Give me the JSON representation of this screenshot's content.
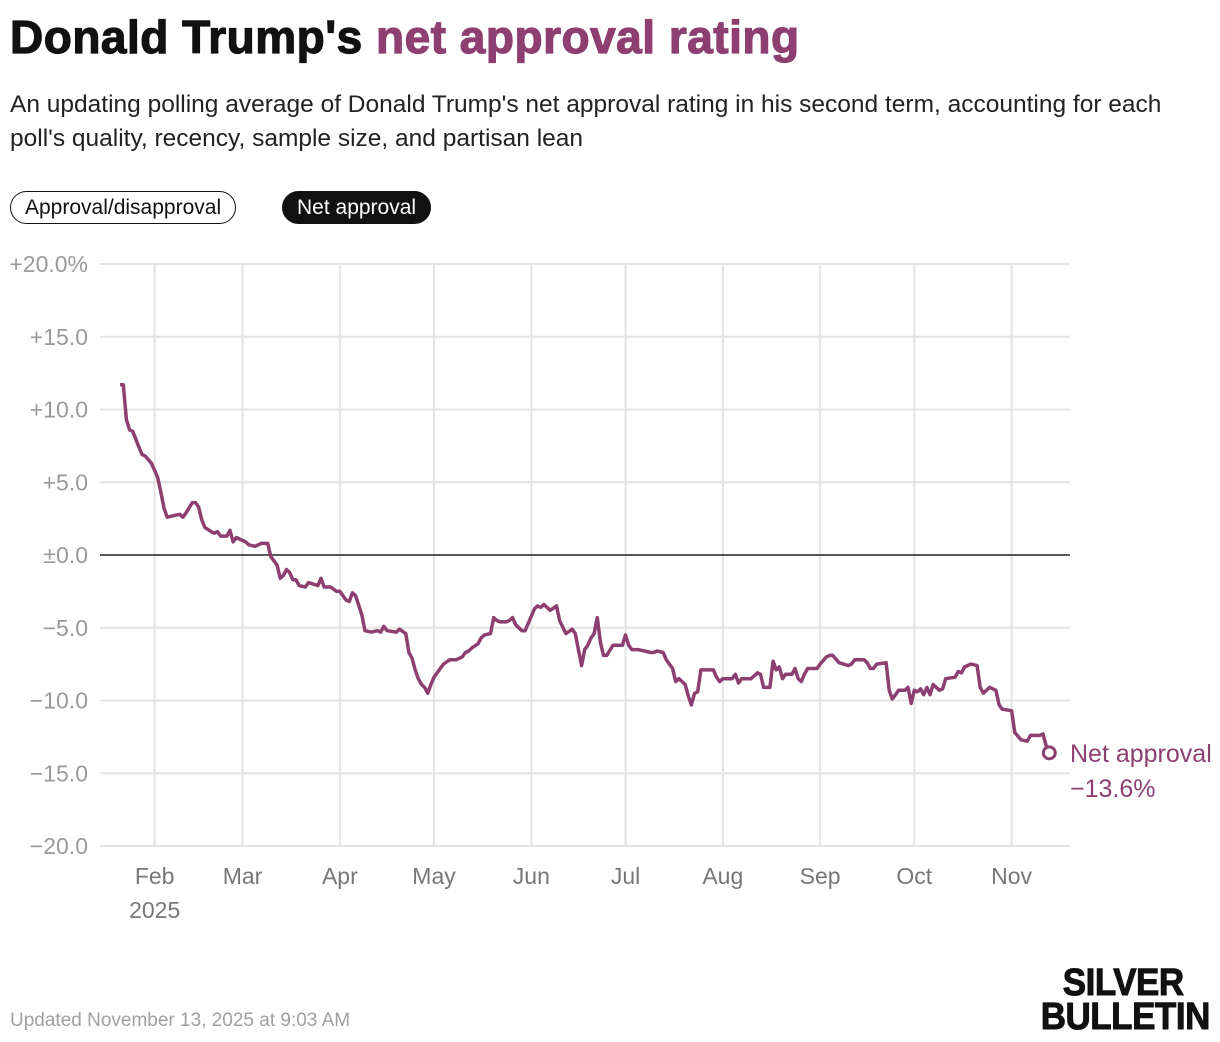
{
  "header": {
    "title_prefix": "Donald Trump's ",
    "title_highlight": "net approval rating",
    "subtitle": "An updating polling average of Donald Trump's net approval rating in his second term, accounting for each poll's quality, recency, sample size, and partisan lean"
  },
  "toggles": {
    "approval_disapproval": "Approval/disapproval",
    "net_approval": "Net approval",
    "active": "net_approval"
  },
  "footer": {
    "updated": "Updated November 13, 2025 at 9:03 AM",
    "logo_line1": "SILVER",
    "logo_line2": "BULLETIN"
  },
  "colors": {
    "accent": "#8e3f72",
    "grid": "#e4e4e4",
    "zero": "#222222",
    "tick": "#9a9a9a"
  },
  "chart_data": {
    "type": "line",
    "title": "Donald Trump's net approval rating",
    "xlabel": "",
    "ylabel": "",
    "x_unit": "days since Jan 20, 2025",
    "ylim": [
      -20,
      20
    ],
    "xlim": [
      0,
      306
    ],
    "grid": true,
    "y_ticks": [
      {
        "value": 20,
        "label": "+20.0%"
      },
      {
        "value": 15,
        "label": "+15.0"
      },
      {
        "value": 10,
        "label": "+10.0"
      },
      {
        "value": 5,
        "label": "+5.0"
      },
      {
        "value": 0,
        "label": "±0.0"
      },
      {
        "value": -5,
        "label": "−5.0"
      },
      {
        "value": -10,
        "label": "−10.0"
      },
      {
        "value": -15,
        "label": "−15.0"
      },
      {
        "value": -20,
        "label": "−20.0"
      }
    ],
    "x_ticks": [
      {
        "day": 12,
        "label": "Feb",
        "sublabel": "2025"
      },
      {
        "day": 40,
        "label": "Mar"
      },
      {
        "day": 71,
        "label": "Apr"
      },
      {
        "day": 101,
        "label": "May"
      },
      {
        "day": 132,
        "label": "Jun"
      },
      {
        "day": 162,
        "label": "Jul"
      },
      {
        "day": 193,
        "label": "Aug"
      },
      {
        "day": 224,
        "label": "Sep"
      },
      {
        "day": 254,
        "label": "Oct"
      },
      {
        "day": 285,
        "label": "Nov"
      }
    ],
    "series": [
      {
        "name": "Net approval",
        "end_label": "Net approval",
        "end_value_label": "−13.6%",
        "x": [
          1,
          2,
          3,
          4,
          5,
          7,
          8,
          9,
          11,
          12,
          13,
          14,
          15,
          16,
          18,
          20,
          21,
          22,
          24,
          25,
          26,
          27,
          28,
          30,
          31,
          32,
          33,
          35,
          36,
          37,
          38,
          39,
          41,
          42,
          44,
          46,
          48,
          49,
          51,
          52,
          53,
          54,
          55,
          56,
          57,
          58,
          60,
          61,
          64,
          65,
          66,
          68,
          70,
          71,
          73,
          74,
          75,
          76,
          78,
          79,
          81,
          83,
          84,
          85,
          86,
          89,
          90,
          92,
          93,
          94,
          95,
          96,
          97,
          98,
          99,
          100,
          101,
          103,
          104,
          106,
          108,
          110,
          111,
          112,
          113,
          115,
          116,
          117,
          119,
          120,
          121,
          122,
          124,
          125,
          126,
          127,
          129,
          130,
          131,
          133,
          134,
          135,
          136,
          138,
          140,
          141,
          143,
          145,
          146,
          147,
          148,
          149,
          150,
          151,
          152,
          153,
          154,
          155,
          156,
          158,
          159,
          161,
          162,
          163,
          164,
          166,
          168,
          170,
          171,
          172,
          174,
          175,
          177,
          178,
          179,
          181,
          182,
          183,
          184,
          185,
          186,
          188,
          190,
          191,
          192,
          193,
          196,
          197,
          198,
          199,
          202,
          204,
          205,
          206,
          208,
          209,
          210,
          211,
          212,
          213,
          215,
          216,
          217,
          218,
          219,
          220,
          223,
          224,
          226,
          227,
          228,
          230,
          233,
          234,
          235,
          238,
          239,
          240,
          241,
          242,
          245,
          246,
          247,
          248,
          249,
          251,
          252,
          253,
          254,
          255,
          256,
          257,
          258,
          259,
          260,
          262,
          263,
          264,
          267,
          268,
          269,
          270,
          272,
          274,
          275,
          276,
          278,
          280,
          281,
          282,
          285,
          286,
          288,
          290,
          291,
          294,
          295,
          296,
          297
        ],
        "values": [
          11.7,
          11.7,
          9.3,
          8.6,
          8.5,
          7.4,
          6.9,
          6.8,
          6.3,
          5.8,
          5.3,
          4.3,
          3.2,
          2.6,
          2.7,
          2.8,
          2.6,
          2.9,
          3.6,
          3.6,
          3.3,
          2.4,
          1.9,
          1.6,
          1.5,
          1.6,
          1.3,
          1.3,
          1.7,
          0.9,
          1.2,
          1.1,
          0.9,
          0.7,
          0.6,
          0.8,
          0.8,
          -0.1,
          -0.7,
          -1.6,
          -1.4,
          -1.0,
          -1.2,
          -1.7,
          -1.7,
          -2.1,
          -2.2,
          -1.9,
          -2.1,
          -1.6,
          -2.2,
          -2.2,
          -2.5,
          -2.5,
          -3.1,
          -3.2,
          -2.6,
          -2.8,
          -4.1,
          -5.2,
          -5.3,
          -5.2,
          -5.3,
          -4.9,
          -5.2,
          -5.3,
          -5.1,
          -5.4,
          -6.7,
          -7.1,
          -7.9,
          -8.5,
          -8.9,
          -9.1,
          -9.5,
          -8.9,
          -8.4,
          -7.8,
          -7.5,
          -7.2,
          -7.2,
          -7.0,
          -6.7,
          -6.6,
          -6.4,
          -6.1,
          -5.7,
          -5.5,
          -5.4,
          -4.3,
          -4.5,
          -4.6,
          -4.6,
          -4.5,
          -4.3,
          -4.8,
          -5.2,
          -5.2,
          -4.7,
          -3.7,
          -3.5,
          -3.6,
          -3.4,
          -3.8,
          -3.5,
          -4.5,
          -5.4,
          -5.1,
          -5.4,
          -6.5,
          -7.6,
          -6.5,
          -6.2,
          -5.7,
          -5.4,
          -4.3,
          -6.0,
          -6.9,
          -6.9,
          -6.2,
          -6.2,
          -6.2,
          -5.5,
          -6.2,
          -6.5,
          -6.5,
          -6.6,
          -6.7,
          -6.7,
          -6.6,
          -6.7,
          -7.2,
          -7.8,
          -8.7,
          -8.5,
          -8.9,
          -9.7,
          -10.3,
          -9.5,
          -9.4,
          -7.9,
          -7.9,
          -7.9,
          -8.4,
          -8.7,
          -8.5,
          -8.5,
          -8.2,
          -8.8,
          -8.5,
          -8.5,
          -8.1,
          -8.2,
          -9.1,
          -9.1,
          -7.3,
          -7.9,
          -7.7,
          -8.5,
          -8.2,
          -8.2,
          -7.8,
          -8.5,
          -8.7,
          -8.2,
          -7.8,
          -7.8,
          -7.5,
          -7.0,
          -6.9,
          -6.9,
          -7.4,
          -7.6,
          -7.5,
          -7.2,
          -7.2,
          -7.4,
          -7.8,
          -7.8,
          -7.5,
          -7.4,
          -9.3,
          -9.9,
          -9.6,
          -9.3,
          -9.3,
          -9.1,
          -10.2,
          -9.3,
          -9.4,
          -9.2,
          -9.6,
          -9.1,
          -9.6,
          -8.9,
          -9.3,
          -9.2,
          -8.5,
          -8.4,
          -8.0,
          -8.1,
          -7.7,
          -7.5,
          -7.6,
          -9.1,
          -9.5,
          -9.1,
          -9.3,
          -10.3,
          -10.6,
          -10.7,
          -12.2,
          -12.7,
          -12.8,
          -12.4,
          -12.4,
          -12.3,
          -13.1,
          -13.6
        ]
      }
    ]
  }
}
